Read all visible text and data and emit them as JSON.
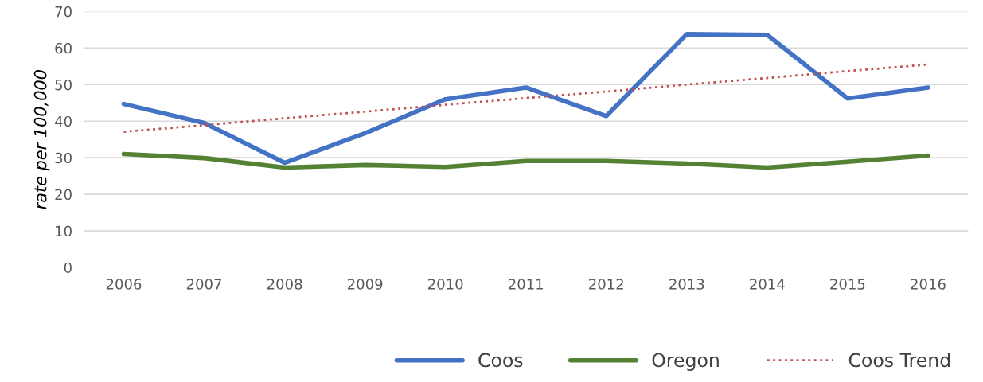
{
  "chart_data": {
    "type": "line",
    "ylabel": "rate per 100,000",
    "categories": [
      "2006",
      "2007",
      "2008",
      "2009",
      "2010",
      "2011",
      "2012",
      "2013",
      "2014",
      "2015",
      "2016"
    ],
    "series": [
      {
        "name": "Coos",
        "color": "#4472c4",
        "values": [
          44.7,
          39.5,
          28.6,
          36.7,
          46.0,
          49.2,
          41.4,
          63.8,
          63.6,
          46.2,
          49.2
        ]
      },
      {
        "name": "Oregon",
        "color": "#548235",
        "values": [
          31.0,
          29.9,
          27.3,
          28.0,
          27.5,
          29.1,
          29.1,
          28.4,
          27.3,
          28.9,
          30.6
        ]
      },
      {
        "name": "Coos Trend",
        "color": "#c0504d",
        "line_style": "dotted",
        "values": [
          37.1,
          38.9,
          40.8,
          42.6,
          44.5,
          46.3,
          48.1,
          50.0,
          51.8,
          53.7,
          55.5
        ]
      }
    ],
    "ylim": [
      0,
      70
    ],
    "yticks": [
      0,
      10,
      20,
      30,
      40,
      50,
      60,
      70
    ],
    "grid": "y",
    "legend": "bottom right",
    "marker": "none"
  }
}
